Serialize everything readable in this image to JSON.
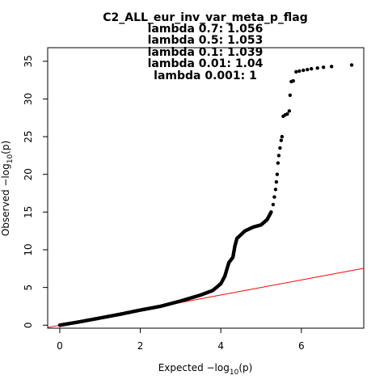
{
  "chart_data": {
    "type": "scatter",
    "title_lines": [
      "C2_ALL_eur_inv_var_meta_p_flag",
      "lambda 0.7: 1.056",
      "lambda 0.5: 1.053",
      "lambda 0.1: 1.039",
      "lambda 0.01: 1.04",
      "lambda 0.001: 1"
    ],
    "xlabel": {
      "prefix": "Expected  −log",
      "sub": "10",
      "suffix": "(p)"
    },
    "ylabel": {
      "prefix": "Observed  −log",
      "sub": "10",
      "suffix": "(p)"
    },
    "xlim": [
      -0.3,
      7.55
    ],
    "ylim": [
      -0.4,
      36.8
    ],
    "x_ticks": [
      0,
      2,
      4,
      6
    ],
    "y_ticks": [
      0,
      5,
      10,
      15,
      20,
      25,
      30,
      35
    ],
    "point_color": "#000000",
    "line_color": "#ff0000",
    "reference_line": {
      "slope": 1,
      "intercept": 0
    },
    "grid": false,
    "curve": [
      [
        0.0,
        0.0
      ],
      [
        0.5,
        0.45
      ],
      [
        1.0,
        0.95
      ],
      [
        1.5,
        1.45
      ],
      [
        2.0,
        2.0
      ],
      [
        2.5,
        2.5
      ],
      [
        3.0,
        3.2
      ],
      [
        3.5,
        4.0
      ],
      [
        3.8,
        4.6
      ],
      [
        4.0,
        5.5
      ],
      [
        4.1,
        6.5
      ],
      [
        4.2,
        8.3
      ],
      [
        4.3,
        9.0
      ],
      [
        4.35,
        10.5
      ],
      [
        4.4,
        11.5
      ],
      [
        4.6,
        12.5
      ],
      [
        4.8,
        13.0
      ],
      [
        5.0,
        13.3
      ],
      [
        5.15,
        14.0
      ],
      [
        5.2,
        14.5
      ],
      [
        5.25,
        15.0
      ]
    ],
    "upper_points": [
      [
        5.3,
        16.0
      ],
      [
        5.33,
        17.0
      ],
      [
        5.36,
        18.0
      ],
      [
        5.38,
        19.0
      ],
      [
        5.4,
        20.0
      ],
      [
        5.42,
        21.5
      ],
      [
        5.44,
        22.5
      ],
      [
        5.47,
        23.5
      ],
      [
        5.5,
        24.5
      ],
      [
        5.52,
        25.0
      ],
      [
        5.55,
        27.7
      ],
      [
        5.6,
        27.9
      ],
      [
        5.65,
        28.0
      ],
      [
        5.7,
        28.4
      ],
      [
        5.72,
        30.5
      ],
      [
        5.75,
        32.3
      ],
      [
        5.8,
        32.4
      ],
      [
        5.87,
        33.6
      ],
      [
        5.95,
        33.7
      ],
      [
        6.05,
        33.8
      ],
      [
        6.15,
        33.9
      ],
      [
        6.25,
        34.0
      ],
      [
        6.4,
        34.1
      ],
      [
        6.55,
        34.2
      ],
      [
        6.75,
        34.3
      ],
      [
        7.25,
        34.5
      ]
    ]
  }
}
